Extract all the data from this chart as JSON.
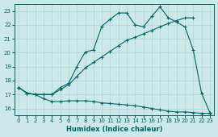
{
  "xlabel": "Humidex (Indice chaleur)",
  "bg_color": "#cce8e8",
  "line_color": "#006666",
  "grid_color": "#b0d4d4",
  "xlim": [
    -0.5,
    23.5
  ],
  "ylim": [
    15.5,
    23.5
  ],
  "yticks": [
    16,
    17,
    18,
    19,
    20,
    21,
    22,
    23
  ],
  "xticks": [
    0,
    1,
    2,
    3,
    4,
    5,
    6,
    7,
    8,
    9,
    10,
    11,
    12,
    13,
    14,
    15,
    16,
    17,
    18,
    19,
    20,
    21,
    22,
    23
  ],
  "line1_x": [
    0,
    1,
    2,
    3,
    4,
    5,
    6,
    7,
    8,
    9,
    10,
    11,
    12,
    13,
    14,
    15,
    16,
    17,
    18,
    19,
    20,
    21,
    22,
    23
  ],
  "line1_y": [
    17.5,
    17.1,
    17.0,
    16.7,
    16.5,
    16.5,
    16.55,
    16.55,
    16.55,
    16.5,
    16.4,
    16.35,
    16.3,
    16.25,
    16.2,
    16.1,
    16.0,
    15.9,
    15.8,
    15.75,
    15.75,
    15.7,
    15.65,
    15.65
  ],
  "line2_x": [
    0,
    1,
    2,
    3,
    4,
    5,
    6,
    7,
    8,
    9,
    10,
    11,
    12,
    13,
    14,
    15,
    16,
    17,
    18,
    19,
    20,
    21
  ],
  "line2_y": [
    17.5,
    17.1,
    17.0,
    17.0,
    17.0,
    17.35,
    17.7,
    18.3,
    18.9,
    19.3,
    19.7,
    20.1,
    20.5,
    20.9,
    21.1,
    21.35,
    21.6,
    21.85,
    22.1,
    22.3,
    22.5,
    22.5
  ],
  "line3_x": [
    0,
    1,
    2,
    3,
    4,
    5,
    6,
    7,
    8,
    9,
    10,
    11,
    12,
    13,
    14,
    15,
    16,
    17,
    18,
    19,
    20,
    21,
    22,
    23
  ],
  "line3_y": [
    17.5,
    17.1,
    17.0,
    17.0,
    17.0,
    17.5,
    17.8,
    19.0,
    20.05,
    20.2,
    21.9,
    22.4,
    22.85,
    22.85,
    22.0,
    21.85,
    22.6,
    23.3,
    22.5,
    22.2,
    21.85,
    20.2,
    17.1,
    15.7
  ]
}
